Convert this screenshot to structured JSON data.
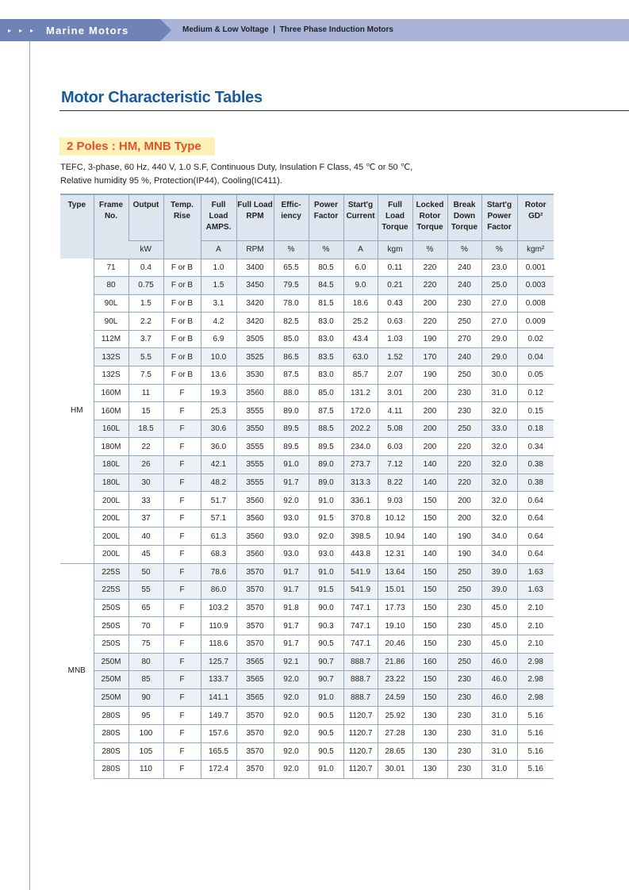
{
  "header": {
    "brand": "Marine Motors",
    "breadcrumb": "Medium & Low Voltage  |  Three Phase Induction Motors",
    "arrows": "▸▸▸"
  },
  "title": "Motor Characteristic Tables",
  "section": "2 Poles : HM, MNB Type",
  "description": [
    "TEFC, 3-phase, 60 Hz, 440 V, 1.0 S.F, Continuous Duty, Insulation F Class, 45 ℃ or 50 ℃,",
    "Relative humidity 95 %, Protection(IP44), Cooling(IC411)."
  ],
  "table": {
    "headers": [
      "Type",
      "Frame No.",
      "Output",
      "Temp. Rise",
      "Full Load AMPS.",
      "Full Load RPM",
      "Effic- iency",
      "Power Factor",
      "Start'g Current",
      "Full Load Torque",
      "Locked Rotor Torque",
      "Break Down Torque",
      "Start'g Power Factor",
      "Rotor GD²"
    ],
    "units": [
      "kW",
      "A",
      "RPM",
      "%",
      "%",
      "A",
      "kgm",
      "%",
      "%",
      "%",
      "kgm²"
    ],
    "groups": [
      {
        "type": "HM",
        "rows": [
          [
            "71",
            "0.4",
            "F or B",
            "1.0",
            "3400",
            "65.5",
            "80.5",
            "6.0",
            "0.11",
            "220",
            "240",
            "23.0",
            "0.001"
          ],
          [
            "80",
            "0.75",
            "F or B",
            "1.5",
            "3450",
            "79.5",
            "84.5",
            "9.0",
            "0.21",
            "220",
            "240",
            "25.0",
            "0.003"
          ],
          [
            "90L",
            "1.5",
            "F or B",
            "3.1",
            "3420",
            "78.0",
            "81.5",
            "18.6",
            "0.43",
            "200",
            "230",
            "27.0",
            "0.008"
          ],
          [
            "90L",
            "2.2",
            "F or B",
            "4.2",
            "3420",
            "82.5",
            "83.0",
            "25.2",
            "0.63",
            "220",
            "250",
            "27.0",
            "0.009"
          ],
          [
            "112M",
            "3.7",
            "F or B",
            "6.9",
            "3505",
            "85.0",
            "83.0",
            "43.4",
            "1.03",
            "190",
            "270",
            "29.0",
            "0.02"
          ],
          [
            "132S",
            "5.5",
            "F or B",
            "10.0",
            "3525",
            "86.5",
            "83.5",
            "63.0",
            "1.52",
            "170",
            "240",
            "29.0",
            "0.04"
          ],
          [
            "132S",
            "7.5",
            "F or B",
            "13.6",
            "3530",
            "87.5",
            "83.0",
            "85.7",
            "2.07",
            "190",
            "250",
            "30.0",
            "0.05"
          ],
          [
            "160M",
            "11",
            "F",
            "19.3",
            "3560",
            "88.0",
            "85.0",
            "131.2",
            "3.01",
            "200",
            "230",
            "31.0",
            "0.12"
          ],
          [
            "160M",
            "15",
            "F",
            "25.3",
            "3555",
            "89.0",
            "87.5",
            "172.0",
            "4.11",
            "200",
            "230",
            "32.0",
            "0.15"
          ],
          [
            "160L",
            "18.5",
            "F",
            "30.6",
            "3550",
            "89.5",
            "88.5",
            "202.2",
            "5.08",
            "200",
            "250",
            "33.0",
            "0.18"
          ],
          [
            "180M",
            "22",
            "F",
            "36.0",
            "3555",
            "89.5",
            "89.5",
            "234.0",
            "6.03",
            "200",
            "220",
            "32.0",
            "0.34"
          ],
          [
            "180L",
            "26",
            "F",
            "42.1",
            "3555",
            "91.0",
            "89.0",
            "273.7",
            "7.12",
            "140",
            "220",
            "32.0",
            "0.38"
          ],
          [
            "180L",
            "30",
            "F",
            "48.2",
            "3555",
            "91.7",
            "89.0",
            "313.3",
            "8.22",
            "140",
            "220",
            "32.0",
            "0.38"
          ],
          [
            "200L",
            "33",
            "F",
            "51.7",
            "3560",
            "92.0",
            "91.0",
            "336.1",
            "9.03",
            "150",
            "200",
            "32.0",
            "0.64"
          ],
          [
            "200L",
            "37",
            "F",
            "57.1",
            "3560",
            "93.0",
            "91.5",
            "370.8",
            "10.12",
            "150",
            "200",
            "32.0",
            "0.64"
          ],
          [
            "200L",
            "40",
            "F",
            "61.3",
            "3560",
            "93.0",
            "92.0",
            "398.5",
            "10.94",
            "140",
            "190",
            "34.0",
            "0.64"
          ],
          [
            "200L",
            "45",
            "F",
            "68.3",
            "3560",
            "93.0",
            "93.0",
            "443.8",
            "12.31",
            "140",
            "190",
            "34.0",
            "0.64"
          ]
        ]
      },
      {
        "type": "MNB",
        "rows": [
          [
            "225S",
            "50",
            "F",
            "78.6",
            "3570",
            "91.7",
            "91.0",
            "541.9",
            "13.64",
            "150",
            "250",
            "39.0",
            "1.63"
          ],
          [
            "225S",
            "55",
            "F",
            "86.0",
            "3570",
            "91.7",
            "91.5",
            "541.9",
            "15.01",
            "150",
            "250",
            "39.0",
            "1.63"
          ],
          [
            "250S",
            "65",
            "F",
            "103.2",
            "3570",
            "91.8",
            "90.0",
            "747.1",
            "17.73",
            "150",
            "230",
            "45.0",
            "2.10"
          ],
          [
            "250S",
            "70",
            "F",
            "110.9",
            "3570",
            "91.7",
            "90.3",
            "747.1",
            "19.10",
            "150",
            "230",
            "45.0",
            "2.10"
          ],
          [
            "250S",
            "75",
            "F",
            "118.6",
            "3570",
            "91.7",
            "90.5",
            "747.1",
            "20.46",
            "150",
            "230",
            "45.0",
            "2.10"
          ],
          [
            "250M",
            "80",
            "F",
            "125.7",
            "3565",
            "92.1",
            "90.7",
            "888.7",
            "21.86",
            "160",
            "250",
            "46.0",
            "2.98"
          ],
          [
            "250M",
            "85",
            "F",
            "133.7",
            "3565",
            "92.0",
            "90.7",
            "888.7",
            "23.22",
            "150",
            "230",
            "46.0",
            "2.98"
          ],
          [
            "250M",
            "90",
            "F",
            "141.1",
            "3565",
            "92.0",
            "91.0",
            "888.7",
            "24.59",
            "150",
            "230",
            "46.0",
            "2.98"
          ],
          [
            "280S",
            "95",
            "F",
            "149.7",
            "3570",
            "92.0",
            "90.5",
            "1120.7",
            "25.92",
            "130",
            "230",
            "31.0",
            "5.16"
          ],
          [
            "280S",
            "100",
            "F",
            "157.6",
            "3570",
            "92.0",
            "90.5",
            "1120.7",
            "27.28",
            "130",
            "230",
            "31.0",
            "5.16"
          ],
          [
            "280S",
            "105",
            "F",
            "165.5",
            "3570",
            "92.0",
            "90.5",
            "1120.7",
            "28.65",
            "130",
            "230",
            "31.0",
            "5.16"
          ],
          [
            "280S",
            "110",
            "F",
            "172.4",
            "3570",
            "92.0",
            "91.0",
            "1120.7",
            "30.01",
            "130",
            "230",
            "31.0",
            "5.16"
          ]
        ]
      }
    ]
  }
}
